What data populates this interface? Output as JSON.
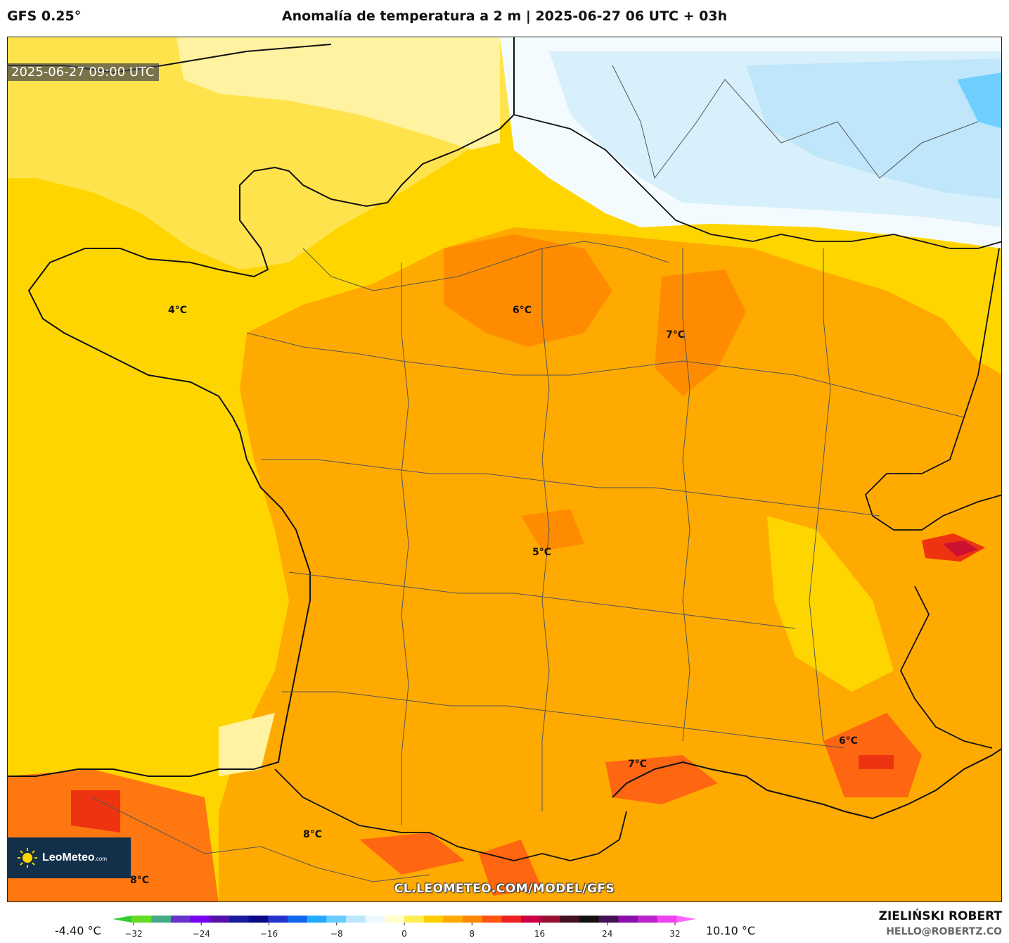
{
  "header": {
    "model": "GFS 0.25°",
    "title": "Anomalía de temperatura a 2 m | 2025-06-27 06 UTC + 03h"
  },
  "map": {
    "valid_time": "2025-06-27 09:00 UTC",
    "labels": [
      {
        "id": "brittany",
        "text": "4°C"
      },
      {
        "id": "paris",
        "text": "6°C"
      },
      {
        "id": "champagne",
        "text": "7°C"
      },
      {
        "id": "central",
        "text": "5°C"
      },
      {
        "id": "languedoc",
        "text": "7°C"
      },
      {
        "id": "provence",
        "text": "6°C"
      },
      {
        "id": "pyrenees",
        "text": "8°C"
      },
      {
        "id": "spain-west",
        "text": "8°C"
      }
    ],
    "watermark": "CL.LEOMETEO.COM/MODEL/GFS"
  },
  "logo": {
    "name": "LeoMeteo",
    "suffix": ".com"
  },
  "colorbar": {
    "min_label": "-4.40 °C",
    "max_label": "10.10 °C",
    "ticks": [
      "−32",
      "−24",
      "−16",
      "−8",
      "0",
      "8",
      "16",
      "24",
      "32"
    ],
    "stops": [
      "#33cc33",
      "#66dd22",
      "#44aa88",
      "#6633cc",
      "#7700ee",
      "#5511aa",
      "#1a1aa0",
      "#0a0a88",
      "#2233cc",
      "#1166ee",
      "#22aaff",
      "#66ccff",
      "#bbe8ff",
      "#eef8ff",
      "#ffffcc",
      "#ffee55",
      "#ffcc00",
      "#ffaa00",
      "#ff8800",
      "#ff5511",
      "#ee2222",
      "#cc0044",
      "#991133",
      "#441122",
      "#111111",
      "#441155",
      "#8811aa",
      "#bb22cc",
      "#ee44ee",
      "#ff66ff"
    ]
  },
  "footer": {
    "author": "ZIELIŃSKI ROBERT",
    "email": "HELLO@ROBERTZ.CO"
  }
}
